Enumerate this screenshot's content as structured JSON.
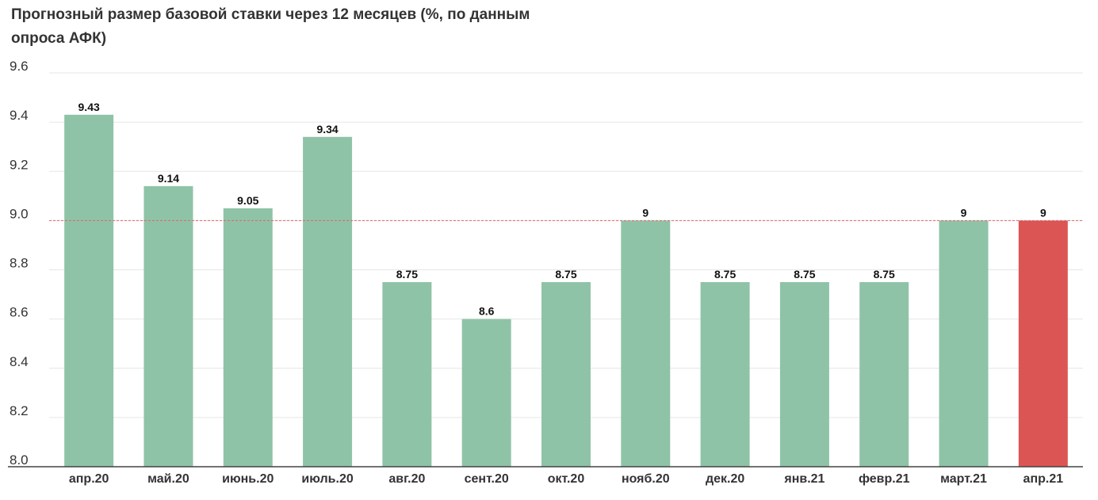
{
  "chart_data": {
    "type": "bar",
    "title": "Прогнозный размер базовой ставки через 12 месяцев (%, по данным опроса АФК)",
    "categories": [
      "апр.20",
      "май.20",
      "июнь.20",
      "июль.20",
      "авг.20",
      "сент.20",
      "окт.20",
      "нояб.20",
      "дек.20",
      "янв.21",
      "февр.21",
      "март.21",
      "апр.21"
    ],
    "values": [
      9.43,
      9.14,
      9.05,
      9.34,
      8.75,
      8.6,
      8.75,
      9,
      8.75,
      8.75,
      8.75,
      9,
      9
    ],
    "data_labels": [
      "9.43",
      "9.14",
      "9.05",
      "9.34",
      "8.75",
      "8.6",
      "8.75",
      "9",
      "8.75",
      "8.75",
      "8.75",
      "9",
      "9"
    ],
    "ylim": [
      8.0,
      9.6
    ],
    "yticks": [
      8.0,
      8.2,
      8.4,
      8.6,
      8.8,
      9.0,
      9.2,
      9.4,
      9.6
    ],
    "ytick_labels": [
      "8.0",
      "8.2",
      "8.4",
      "8.6",
      "8.8",
      "9.0",
      "9.2",
      "9.4",
      "9.6"
    ],
    "xlabel": "",
    "ylabel": "",
    "grid": true,
    "reference_line": {
      "y": 9.0,
      "style": "dashed",
      "color": "#e06666"
    },
    "highlight_index": 12,
    "colors": {
      "bar": "#8fc3a7",
      "highlight": "#dc5555",
      "grid": "#e6e6e6",
      "axis": "#444444"
    }
  }
}
